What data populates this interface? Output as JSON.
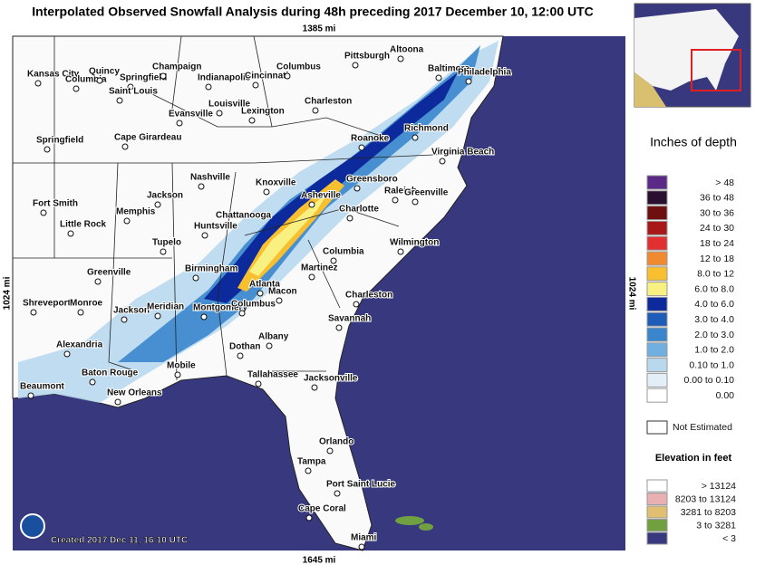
{
  "title": "Interpolated Observed Snowfall Analysis during 48h preceding 2017 December 10, 12:00 UTC",
  "scale": {
    "top": "1385 mi",
    "bottom": "1645 mi",
    "left": "1024 mi",
    "right": "1024 mi"
  },
  "created": "Created 2017 Dec 11, 16:10 UTC",
  "cities": [
    "Altoona",
    "Pittsburgh",
    "Baltimore",
    "Philadelphia",
    "Kansas City",
    "Columbia",
    "Quincy",
    "Springfield",
    "Champaign",
    "Indianapolis",
    "Cincinnati",
    "Columbus",
    "Saint Louis",
    "Charleston",
    "Louisville",
    "Lexington",
    "Evansville",
    "Richmond",
    "Springfield",
    "Cape Girardeau",
    "Roanoke",
    "Virginia Beach",
    "Nashville",
    "Knoxville",
    "Greensboro",
    "Jackson",
    "Raleigh",
    "Greenville",
    "Asheville",
    "Fort Smith",
    "Memphis",
    "Chattanooga",
    "Charlotte",
    "Little Rock",
    "Huntsville",
    "Tupelo",
    "Wilmington",
    "Columbia",
    "Birmingham",
    "Greenville",
    "Martinez",
    "Shreveport",
    "Monroe",
    "Atlanta",
    "Macon",
    "Charleston",
    "Jackson",
    "Meridian",
    "Montgomery",
    "Columbus",
    "Savannah",
    "Albany",
    "Alexandria",
    "Dothan",
    "Baton Rouge",
    "Mobile",
    "Tallahassee",
    "Jacksonville",
    "Beaumont",
    "New Orleans",
    "Orlando",
    "Tampa",
    "Port Saint Lucie",
    "Cape Coral",
    "Miami"
  ],
  "depth_legend": {
    "title": "Inches of depth",
    "rows": [
      {
        "label": "> 48",
        "color": "#5b2a86"
      },
      {
        "label": "36 to 48",
        "color": "#2a1030"
      },
      {
        "label": "30 to 36",
        "color": "#6e1010"
      },
      {
        "label": "24 to 30",
        "color": "#a81818"
      },
      {
        "label": "18 to 24",
        "color": "#e03030"
      },
      {
        "label": "12 to 18",
        "color": "#f08a30"
      },
      {
        "label": "8.0 to 12",
        "color": "#f8c030"
      },
      {
        "label": "6.0 to 8.0",
        "color": "#f8f080"
      },
      {
        "label": "4.0 to 6.0",
        "color": "#0c2a9c"
      },
      {
        "label": "3.0 to 4.0",
        "color": "#1d5db8"
      },
      {
        "label": "2.0 to 3.0",
        "color": "#3a86cc"
      },
      {
        "label": "1.0 to 2.0",
        "color": "#6fb0e0"
      },
      {
        "label": "0.10 to 1.0",
        "color": "#b8d8ee"
      },
      {
        "label": "0.00 to 0.10",
        "color": "#e4eef6"
      },
      {
        "label": "0.00",
        "color": "#ffffff"
      }
    ],
    "not_estimated": "Not Estimated"
  },
  "elevation_legend": {
    "title": "Elevation in feet",
    "rows": [
      {
        "label": "> 13124",
        "color": "#ffffff"
      },
      {
        "label": "8203 to 13124",
        "color": "#e8b0b0"
      },
      {
        "label": "3281 to 8203",
        "color": "#e0c070"
      },
      {
        "label": "3 to 3281",
        "color": "#70a040"
      },
      {
        "label": "< 3",
        "color": "#38387f"
      }
    ]
  }
}
